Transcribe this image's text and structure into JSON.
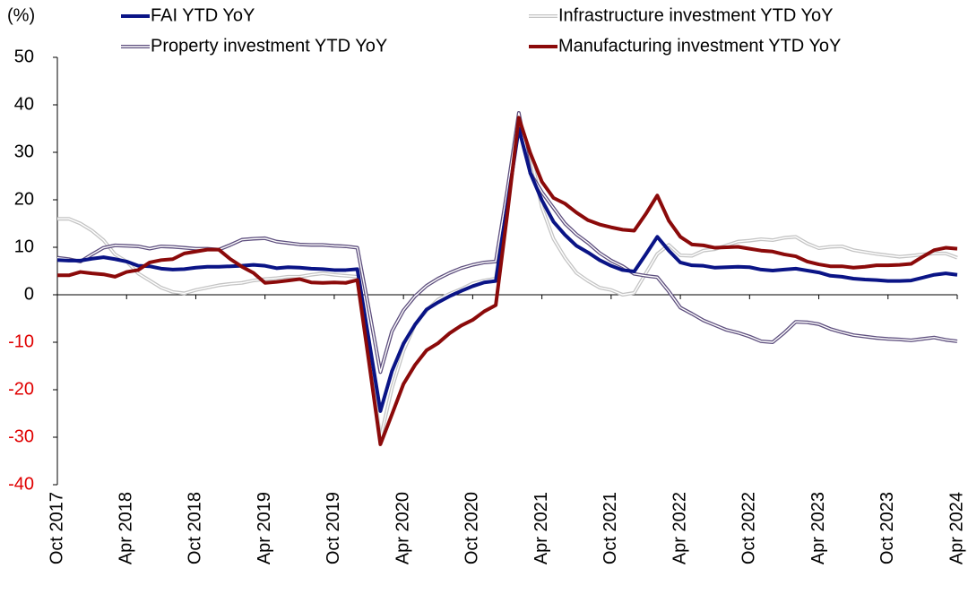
{
  "chart_data": {
    "type": "line",
    "y_label": "(%)",
    "categories": [
      "Oct 2017",
      null,
      null,
      null,
      null,
      null,
      "Apr 2018",
      null,
      null,
      null,
      null,
      null,
      "Oct 2018",
      null,
      null,
      null,
      null,
      null,
      "Apr 2019",
      null,
      null,
      null,
      null,
      null,
      "Oct 2019",
      null,
      null,
      null,
      null,
      null,
      "Apr 2020",
      null,
      null,
      null,
      null,
      null,
      "Oct 2020",
      null,
      null,
      null,
      null,
      null,
      "Apr 2021",
      null,
      null,
      null,
      null,
      null,
      "Oct 2021",
      null,
      null,
      null,
      null,
      null,
      "Apr 2022",
      null,
      null,
      null,
      null,
      null,
      "Oct 2022",
      null,
      null,
      null,
      null,
      null,
      "Apr 2023",
      null,
      null,
      null,
      null,
      null,
      "Oct 2023",
      null,
      null,
      null,
      null,
      null,
      "Apr 2024"
    ],
    "series": [
      {
        "name": "Infrastructure investment YTD YoY",
        "color": "#c4c4c4",
        "double_line": true,
        "values": [
          16.0,
          16.0,
          15.0,
          13.5,
          11.5,
          8.5,
          7.0,
          4.5,
          3.0,
          1.5,
          0.6,
          0.3,
          1.0,
          1.5,
          2.0,
          2.3,
          2.5,
          3.0,
          3.3,
          3.5,
          3.8,
          3.8,
          4.2,
          4.5,
          4.2,
          4.0,
          3.8,
          -12,
          -30.3,
          -19.7,
          -11.8,
          -6.3,
          -3.3,
          -1.0,
          0.2,
          1.2,
          2.4,
          3.0,
          3.4,
          20,
          36.6,
          29.7,
          18.4,
          11.8,
          7.8,
          4.6,
          2.9,
          1.5,
          1.0,
          0.0,
          0.4,
          4.5,
          8.6,
          10.5,
          8.3,
          8.2,
          9.3,
          9.6,
          10.4,
          11.2,
          11.4,
          11.7,
          11.5,
          12.0,
          12.2,
          10.8,
          9.8,
          10.1,
          10.2,
          9.4,
          9.0,
          8.6,
          8.3,
          8.0,
          8.2,
          8.5,
          8.7,
          8.7,
          7.8
        ]
      },
      {
        "name": "Property investment YTD YoY",
        "color": "#5e4f7e",
        "double_line": true,
        "values": [
          7.8,
          7.5,
          7.0,
          8.5,
          9.9,
          10.4,
          10.3,
          10.2,
          9.7,
          10.2,
          10.1,
          9.9,
          9.7,
          9.7,
          9.5,
          10.5,
          11.6,
          11.8,
          11.9,
          11.2,
          10.9,
          10.6,
          10.5,
          10.5,
          10.3,
          10.2,
          9.9,
          -3,
          -16.3,
          -7.7,
          -3.3,
          -0.3,
          1.9,
          3.4,
          4.6,
          5.6,
          6.3,
          6.8,
          7.0,
          22,
          38.3,
          25.6,
          21.6,
          18.3,
          15.0,
          12.7,
          10.9,
          8.8,
          7.2,
          6.0,
          4.4,
          4.0,
          3.7,
          0.7,
          -2.7,
          -4.0,
          -5.4,
          -6.4,
          -7.4,
          -8.0,
          -8.8,
          -9.8,
          -10.0,
          -8,
          -5.7,
          -5.8,
          -6.2,
          -7.2,
          -7.9,
          -8.5,
          -8.8,
          -9.1,
          -9.3,
          -9.4,
          -9.6,
          -9.3,
          -9.0,
          -9.5,
          -9.8
        ]
      },
      {
        "name": "FAI YTD YoY",
        "color": "#0a1486",
        "double_line": false,
        "values": [
          7.3,
          7.2,
          7.2,
          7.6,
          7.9,
          7.5,
          7.0,
          6.1,
          6.0,
          5.5,
          5.3,
          5.4,
          5.7,
          5.9,
          5.9,
          6.0,
          6.1,
          6.3,
          6.1,
          5.6,
          5.8,
          5.7,
          5.5,
          5.4,
          5.2,
          5.2,
          5.4,
          -9.5,
          -24.5,
          -16.1,
          -10.3,
          -6.3,
          -3.1,
          -1.6,
          -0.3,
          0.8,
          1.8,
          2.6,
          2.9,
          19,
          35.0,
          25.6,
          19.9,
          15.4,
          12.6,
          10.3,
          8.9,
          7.3,
          6.1,
          5.2,
          4.9,
          8.5,
          12.2,
          9.3,
          6.8,
          6.2,
          6.1,
          5.7,
          5.8,
          5.9,
          5.8,
          5.3,
          5.1,
          5.3,
          5.5,
          5.1,
          4.7,
          4.0,
          3.8,
          3.4,
          3.2,
          3.1,
          2.9,
          2.9,
          3.0,
          3.6,
          4.2,
          4.5,
          4.2
        ]
      },
      {
        "name": "Manufacturing investment YTD YoY",
        "color": "#8b0a0a",
        "double_line": false,
        "values": [
          4.1,
          4.1,
          4.8,
          4.5,
          4.3,
          3.8,
          4.8,
          5.2,
          6.8,
          7.3,
          7.5,
          8.7,
          9.1,
          9.5,
          9.5,
          7.5,
          5.9,
          4.6,
          2.5,
          2.7,
          3.0,
          3.3,
          2.6,
          2.5,
          2.6,
          2.5,
          3.1,
          -14,
          -31.5,
          -25.2,
          -18.8,
          -14.8,
          -11.7,
          -10.2,
          -8.1,
          -6.5,
          -5.3,
          -3.5,
          -2.2,
          17,
          37.3,
          29.8,
          23.8,
          20.4,
          19.2,
          17.3,
          15.7,
          14.8,
          14.2,
          13.7,
          13.5,
          17,
          20.9,
          15.6,
          12.2,
          10.6,
          10.4,
          9.9,
          10.0,
          10.1,
          9.7,
          9.3,
          9.1,
          8.5,
          8.1,
          7.0,
          6.4,
          6.0,
          6.0,
          5.7,
          5.9,
          6.2,
          6.2,
          6.3,
          6.5,
          8.0,
          9.4,
          9.9,
          9.7
        ]
      }
    ],
    "legend_order": [
      2,
      0,
      1,
      3
    ],
    "ylim": [
      -40,
      50
    ],
    "yticks": [
      -40,
      -30,
      -20,
      -10,
      0,
      10,
      20,
      30,
      40,
      50
    ],
    "negative_tick_color": "#e00000",
    "grid": false
  }
}
